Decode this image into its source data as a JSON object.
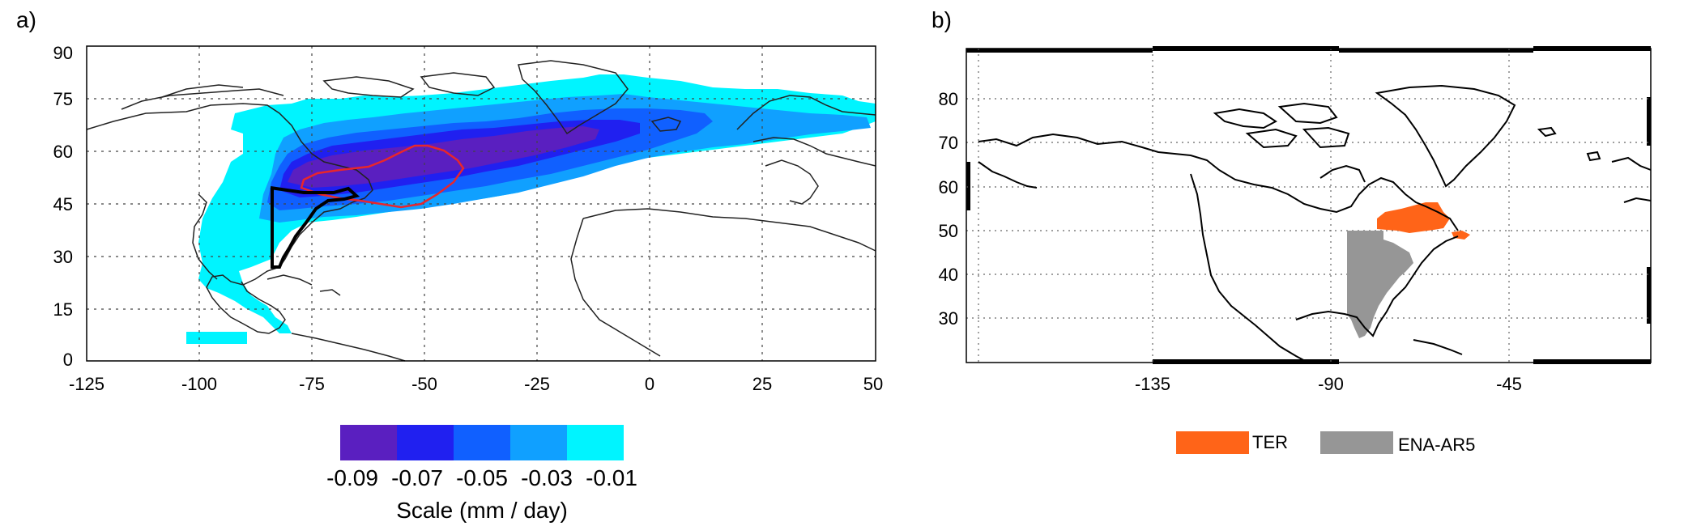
{
  "panel_a": {
    "label": "a)",
    "lat_ticks": [
      "90",
      "75",
      "60",
      "45",
      "30",
      "15",
      "0"
    ],
    "lon_ticks": [
      "-125",
      "-100",
      "-75",
      "-50",
      "-25",
      "0",
      "25",
      "50"
    ],
    "colorbar": {
      "tick_labels": [
        "-0.09",
        "-0.07",
        "-0.05",
        "-0.03",
        "-0.01"
      ],
      "colors": [
        "#5a1fc0",
        "#2020f0",
        "#1060ff",
        "#10a0ff",
        "#00f4ff"
      ],
      "title": "Scale (mm / day)"
    },
    "colors": {
      "outline_red": "#e8262c",
      "outline_black": "#000000",
      "coast": "#222222"
    }
  },
  "panel_b": {
    "label": "b)",
    "lat_ticks": [
      "80",
      "70",
      "60",
      "50",
      "40",
      "30"
    ],
    "lon_ticks": [
      "-135",
      "-90",
      "-45"
    ],
    "legend": [
      {
        "label": "TER",
        "color": "#ff6418"
      },
      {
        "label": "ENA-AR5",
        "color": "#969696"
      }
    ]
  }
}
